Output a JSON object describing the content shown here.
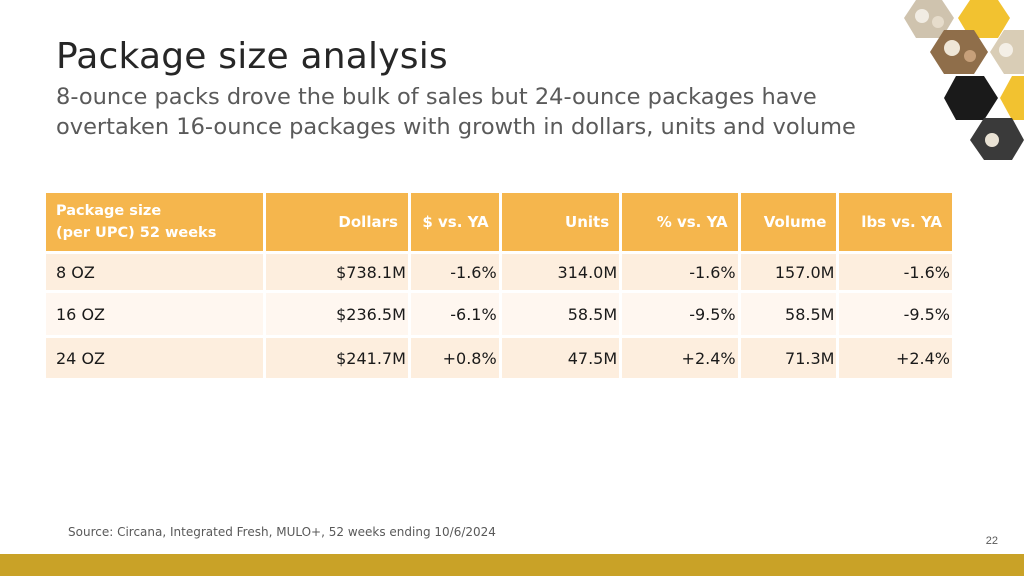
{
  "slide": {
    "title": "Package size analysis",
    "subtitle": "8-ounce packs drove the bulk of sales but 24-ounce packages have overtaken 16-ounce packages with growth in dollars, units and volume",
    "source": "Source: Circana, Integrated Fresh, MULO+, 52 weeks ending 10/6/2024",
    "page_number": "22",
    "decor_image": "mushroom-honeycomb-photo-collage"
  },
  "colors": {
    "header_bg": "#f5b64d",
    "row_light": "#fdeede",
    "row_lighter": "#fff7f0",
    "footer_bar": "#c9a227",
    "hex_dark": "#1a1a1a",
    "hex_gold": "#f2c230"
  },
  "table": {
    "headers": {
      "package_line1": "Package size",
      "package_line2": "(per UPC) 52 weeks",
      "dollars": "Dollars",
      "dollars_vs_ya": "$ vs. YA",
      "units": "Units",
      "units_vs_ya": "% vs. YA",
      "volume": "Volume",
      "volume_vs_ya": "lbs vs. YA"
    },
    "rows": [
      {
        "package": "8 OZ",
        "dollars": "$738.1M",
        "dollars_vs_ya": "-1.6%",
        "units": "314.0M",
        "units_vs_ya": "-1.6%",
        "volume": "157.0M",
        "volume_vs_ya": "-1.6%"
      },
      {
        "package": "16 OZ",
        "dollars": "$236.5M",
        "dollars_vs_ya": "-6.1%",
        "units": "58.5M",
        "units_vs_ya": "-9.5%",
        "volume": "58.5M",
        "volume_vs_ya": "-9.5%"
      },
      {
        "package": "24 OZ",
        "dollars": "$241.7M",
        "dollars_vs_ya": "+0.8%",
        "units": "47.5M",
        "units_vs_ya": "+2.4%",
        "volume": "71.3M",
        "volume_vs_ya": "+2.4%"
      }
    ]
  }
}
